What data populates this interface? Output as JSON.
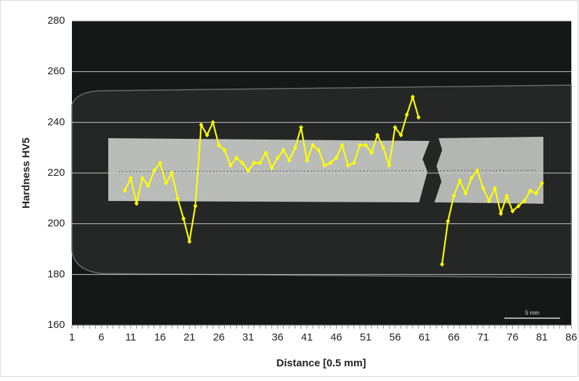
{
  "chart_data": {
    "type": "line",
    "y_label": "Hardness HV5",
    "x_label": "Distance [0.5 mm]",
    "annotations": [
      "5 mm"
    ],
    "categories": [
      "1",
      null,
      null,
      null,
      null,
      "6",
      null,
      null,
      null,
      null,
      "11",
      null,
      null,
      null,
      null,
      "16",
      null,
      null,
      null,
      null,
      "21",
      null,
      null,
      null,
      null,
      "26",
      null,
      null,
      null,
      null,
      "31",
      null,
      null,
      null,
      null,
      "36",
      null,
      null,
      null,
      null,
      "41",
      null,
      null,
      null,
      null,
      "46",
      null,
      null,
      null,
      null,
      "51",
      null,
      null,
      null,
      null,
      "56",
      null,
      null,
      null,
      null,
      "61",
      null,
      null,
      null,
      null,
      "66",
      null,
      null,
      null,
      null,
      "71",
      null,
      null,
      null,
      null,
      "76",
      null,
      null,
      null,
      null,
      "81",
      null,
      null,
      null,
      null,
      "86"
    ],
    "series": [
      {
        "color": "#ffff00",
        "values": [
          null,
          null,
          null,
          null,
          null,
          null,
          null,
          null,
          null,
          213,
          218,
          208,
          218,
          215,
          221,
          224,
          216,
          220,
          210,
          202,
          193,
          207,
          239,
          235,
          240,
          231,
          229,
          223,
          226,
          224,
          221,
          224,
          224,
          228,
          222,
          226,
          229,
          225,
          230,
          238,
          225,
          231,
          229,
          223,
          224,
          226,
          231,
          223,
          224,
          231,
          231,
          228,
          235,
          230,
          223,
          238,
          235,
          243,
          250,
          242,
          null,
          null,
          null,
          184,
          201,
          211,
          217,
          212,
          218,
          221,
          214,
          209,
          214,
          204,
          211,
          205,
          207,
          209,
          213,
          212,
          216,
          null,
          null,
          null,
          null,
          null
        ]
      }
    ],
    "ylim": [
      160,
      280
    ],
    "yticks": [
      160,
      180,
      200,
      220,
      240,
      260,
      280
    ],
    "grid": true
  }
}
